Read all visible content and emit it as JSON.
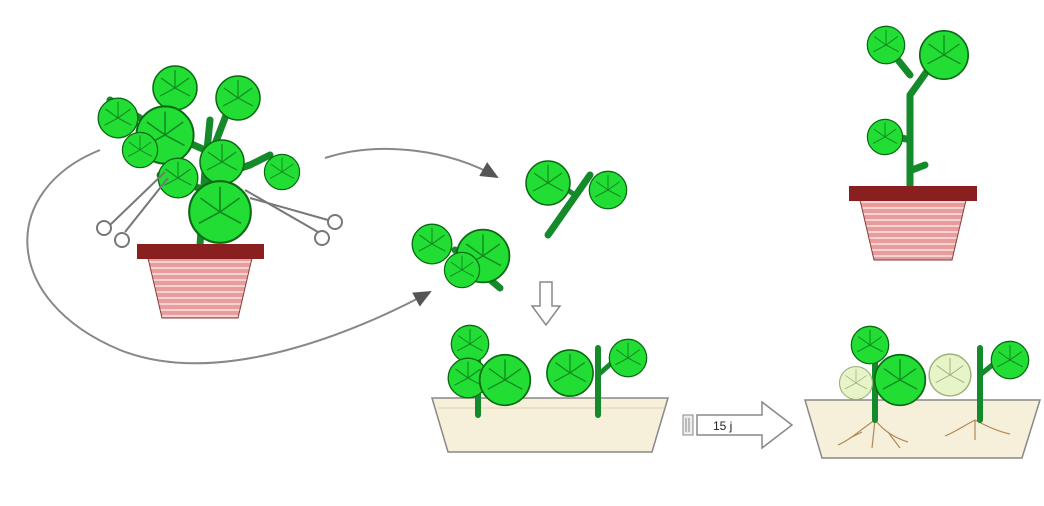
{
  "diagram": {
    "step_label": "15 j",
    "colors": {
      "leaf": "#22dd33",
      "leaf_outline": "#0a6a14",
      "stem": "#148a2a",
      "pot_rim": "#8a1f1f",
      "pot_body": "#e89a9a",
      "tray_fill": "#f6efd9",
      "tray_outline": "#8a8a8a",
      "arrow": "#777777",
      "root": "#b08a55",
      "wilted_leaf": "#e6f4c8"
    },
    "icons": [
      "scissors-icon",
      "cutting-icon",
      "process-arrow-icon"
    ]
  }
}
